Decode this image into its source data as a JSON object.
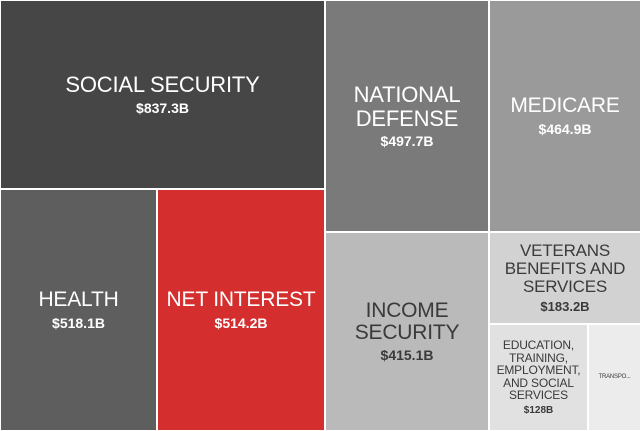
{
  "chart_data": {
    "type": "treemap",
    "units": "$B",
    "items": [
      {
        "name": "SOCIAL SECURITY",
        "value": 837.3,
        "value_label": "$837.3B",
        "color": "#464646",
        "text_color": "#ffffff"
      },
      {
        "name": "HEALTH",
        "value": 518.1,
        "value_label": "$518.1B",
        "color": "#5e5e5e",
        "text_color": "#ffffff"
      },
      {
        "name": "NET INTEREST",
        "value": 514.2,
        "value_label": "$514.2B",
        "color": "#d42e2e",
        "text_color": "#ffffff"
      },
      {
        "name": "NATIONAL\nDEFENSE",
        "value": 497.7,
        "value_label": "$497.7B",
        "color": "#7a7a7a",
        "text_color": "#ffffff"
      },
      {
        "name": "MEDICARE",
        "value": 464.9,
        "value_label": "$464.9B",
        "color": "#9a9a9a",
        "text_color": "#ffffff"
      },
      {
        "name": "INCOME\nSECURITY",
        "value": 415.1,
        "value_label": "$415.1B",
        "color": "#bababa",
        "text_color": "#3a3a3a"
      },
      {
        "name": "VETERANS\nBENEFITS AND\nSERVICES",
        "value": 183.2,
        "value_label": "$183.2B",
        "color": "#d2d2d2",
        "text_color": "#3a3a3a"
      },
      {
        "name": "EDUCATION,\nTRAINING,\nEMPLOYMENT,\nAND SOCIAL\nSERVICES",
        "value": 128,
        "value_label": "$128B",
        "color": "#e1e1e1",
        "text_color": "#3a3a3a"
      },
      {
        "name": "TRANSPO...",
        "value": null,
        "value_label": "",
        "color": "#ececec",
        "text_color": "#3a3a3a"
      }
    ]
  }
}
